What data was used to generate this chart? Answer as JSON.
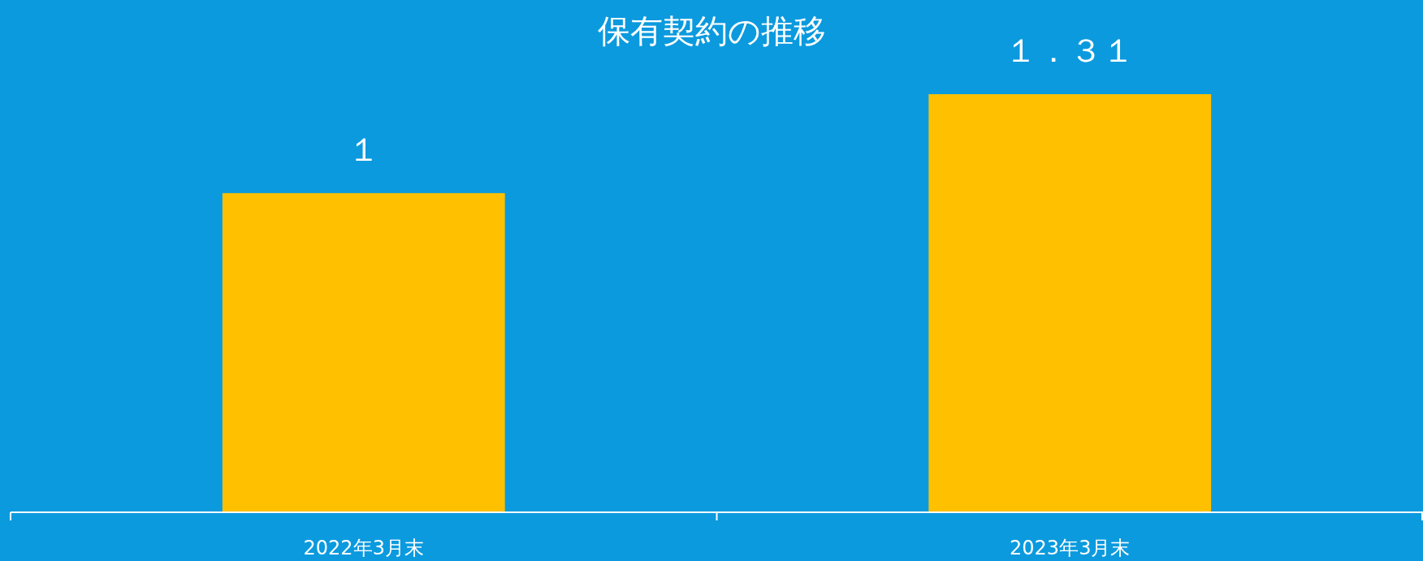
{
  "chart_data": {
    "type": "bar",
    "title": "保有契約の推移",
    "categories": [
      "2022年3月末",
      "2023年3月末"
    ],
    "values": [
      1,
      1.31
    ],
    "value_labels": [
      "１",
      "１．３１"
    ],
    "color": "#ffc000",
    "grid": false
  }
}
